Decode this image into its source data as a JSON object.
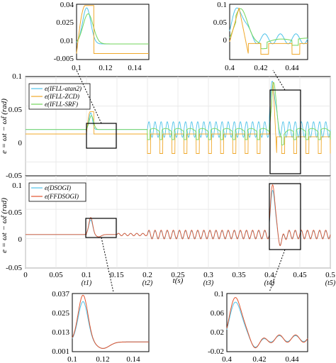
{
  "colors": {
    "blue": "#4fc3ea",
    "orange": "#f0a82a",
    "green": "#72d65a",
    "red": "#e2542e",
    "frame": "#000000"
  },
  "chart_data": [
    {
      "id": "top",
      "type": "line",
      "xlim": [
        0,
        0.5
      ],
      "ylabel": "e = ωt − ω̂t (rad)",
      "yticks": [
        "0.1",
        "0.05",
        "0",
        "-0.05"
      ],
      "ytick_values": [
        0.1,
        0.05,
        0,
        -0.05
      ],
      "legend": {
        "placement": "top-left",
        "entries": [
          "e(IFLL-atan2)",
          "e(IFLL-ZCD)",
          "e(IFLL-SRF)"
        ]
      },
      "series": [
        {
          "name": "e(IFLL-atan2)",
          "color": "blue",
          "x": [
            0,
            0.1,
            0.107,
            0.12,
            0.2,
            0.2001,
            0.4,
            0.405,
            0.43,
            0.5
          ],
          "y": [
            0.008,
            0.008,
            0.038,
            0.01,
            0.01,
            0.022,
            0.022,
            0.1,
            0.018,
            0.018
          ],
          "note_ripple_after": 0.2
        },
        {
          "name": "e(IFLL-ZCD)",
          "color": "orange",
          "x": [
            0,
            0.1,
            0.108,
            0.115,
            0.2,
            0.2001,
            0.4,
            0.405,
            0.43,
            0.5
          ],
          "y": [
            0.0,
            0.0,
            0.04,
            0.0,
            0.0,
            -0.035,
            -0.035,
            0.095,
            -0.03,
            -0.03
          ]
        },
        {
          "name": "e(IFLL-SRF)",
          "color": "green",
          "x": [
            0,
            0.1,
            0.108,
            0.125,
            0.2,
            0.2001,
            0.4,
            0.405,
            0.43,
            0.5
          ],
          "y": [
            0.008,
            0.008,
            0.033,
            0.008,
            0.008,
            0.0,
            0.0,
            0.092,
            0.0,
            0.0
          ]
        }
      ]
    },
    {
      "id": "bottom",
      "type": "line",
      "xlim": [
        0,
        0.5
      ],
      "ylim": [
        -0.05,
        0.1
      ],
      "xticks": [
        "0",
        "0.05",
        "0.1",
        "0.15",
        "0.2",
        "0.25",
        "0.3",
        "0.35",
        "0.4",
        "0.45",
        "0.5"
      ],
      "xtick_values": [
        0,
        0.05,
        0.1,
        0.15,
        0.2,
        0.25,
        0.3,
        0.35,
        0.4,
        0.45,
        0.5
      ],
      "yticks": [
        "0.1",
        "0.05",
        "0",
        "-0.05"
      ],
      "ytick_values": [
        0.1,
        0.05,
        0,
        -0.05
      ],
      "ylabel": "e = ωt − ω̂t (rad)",
      "xlabel": "t(s)",
      "time_markers": [
        "(t1)",
        "(t2)",
        "(t3)",
        "(t4)",
        "(t5)"
      ],
      "time_marker_values": [
        0.1,
        0.2,
        0.3,
        0.4,
        0.5
      ],
      "legend": {
        "placement": "top-left",
        "entries": [
          "e(DSOGI)",
          "e(FFDSOGI)"
        ]
      },
      "series": [
        {
          "name": "e(DSOGI)",
          "color": "blue",
          "x": [
            0,
            0.1,
            0.107,
            0.12,
            0.2,
            0.2001,
            0.4,
            0.406,
            0.43,
            0.5
          ],
          "y": [
            0.007,
            0.007,
            0.032,
            0.01,
            0.007,
            0.007,
            0.007,
            0.085,
            0.005,
            0.007
          ]
        },
        {
          "name": "e(FFDSOGI)",
          "color": "red",
          "x": [
            0,
            0.1,
            0.107,
            0.12,
            0.2,
            0.2001,
            0.4,
            0.406,
            0.43,
            0.5
          ],
          "y": [
            0.007,
            0.007,
            0.036,
            0.008,
            0.007,
            0.007,
            0.007,
            0.095,
            0.005,
            0.007
          ]
        }
      ]
    },
    {
      "id": "inset-top-left",
      "type": "line",
      "xlim": [
        0.1,
        0.15
      ],
      "ylim": [
        -0.005,
        0.04
      ],
      "xticks": [
        "0.1",
        "0.12",
        "0.14"
      ],
      "xtick_values": [
        0.1,
        0.12,
        0.14
      ],
      "yticks": [
        "0.04",
        "0.025",
        "0.01",
        "-0.005"
      ],
      "ytick_values": [
        0.04,
        0.025,
        0.01,
        -0.005
      ]
    },
    {
      "id": "inset-top-right",
      "type": "line",
      "xlim": [
        0.4,
        0.45
      ],
      "ylim": [
        -0.05,
        0.1
      ],
      "xticks": [
        "0.4",
        "0.42",
        "0.44"
      ],
      "xtick_values": [
        0.4,
        0.42,
        0.44
      ],
      "yticks": [
        "0.1",
        "0.05",
        "0"
      ],
      "ytick_values": [
        0.1,
        0.05,
        0
      ]
    },
    {
      "id": "inset-bottom-left",
      "type": "line",
      "xlim": [
        0.1,
        0.15
      ],
      "ylim": [
        0.001,
        0.037
      ],
      "xticks": [
        "0.1",
        "0.12",
        "0.14"
      ],
      "xtick_values": [
        0.1,
        0.12,
        0.14
      ],
      "yticks": [
        "0.037",
        "0.025",
        "0.013",
        "0.001"
      ],
      "ytick_values": [
        0.037,
        0.025,
        0.013,
        0.001
      ]
    },
    {
      "id": "inset-bottom-right",
      "type": "line",
      "xlim": [
        0.4,
        0.45
      ],
      "ylim": [
        -0.02,
        0.1
      ],
      "xticks": [
        "0.4",
        "0.42",
        "0.44"
      ],
      "xtick_values": [
        0.4,
        0.42,
        0.44
      ],
      "yticks": [
        "0.1",
        "0.06",
        "0.02",
        "-0.02"
      ],
      "ytick_values": [
        0.1,
        0.06,
        0.02,
        -0.02
      ]
    }
  ]
}
